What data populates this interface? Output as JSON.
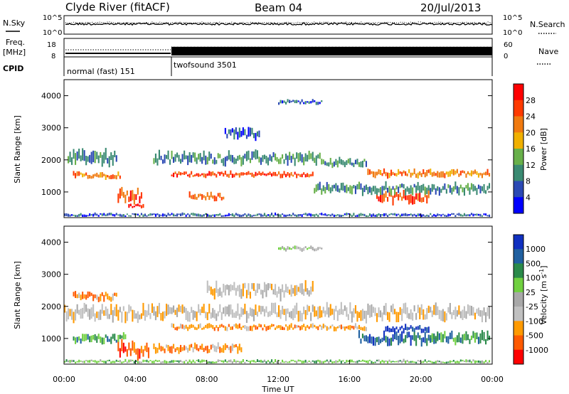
{
  "header": {
    "station": "Clyde River (fitACF)",
    "beam": "Beam 04",
    "date": "20/Jul/2013"
  },
  "noise_panel": {
    "left_label": "N.Sky",
    "left_ticks": [
      "10^5",
      "10^0"
    ],
    "right_ticks": [
      "10^5",
      "10^0"
    ],
    "right_label": "N.Search",
    "solid_level": 0.55,
    "dotted_level": 0.62
  },
  "freq_panel": {
    "left_label_1": "Freq.",
    "left_label_2": "[MHz]",
    "left_ticks": [
      "18",
      "8"
    ],
    "right_ticks": [
      "60",
      "0"
    ],
    "right_label": "Nave"
  },
  "cpid_panel": {
    "label": "CPID",
    "modes": [
      {
        "name": "normal (fast) 151",
        "start_hour": 0,
        "end_hour": 6
      },
      {
        "name": "twofsound 3501",
        "start_hour": 6,
        "end_hour": 24
      }
    ]
  },
  "colors": {
    "power": [
      "#0000ff",
      "#2b49b4",
      "#3a8a72",
      "#68b04a",
      "#f0b000",
      "#f07a10",
      "#ff3a00",
      "#ff0000"
    ],
    "velocity": [
      "#ff0000",
      "#ff5a00",
      "#ff9a00",
      "#c0c0c0",
      "#a8a8a8",
      "#70d040",
      "#2a8a4a",
      "#2060a0",
      "#1030c0"
    ]
  },
  "chart_data": [
    {
      "type": "heatmap",
      "title": "",
      "ylabel": "Slant Range [km]",
      "y_ticks": [
        1000,
        2000,
        3000,
        4000
      ],
      "ylim": [
        200,
        4500
      ],
      "xlim": [
        0,
        24
      ],
      "x_ticks": [
        "00:00",
        "04:00",
        "08:00",
        "12:00",
        "16:00",
        "20:00",
        "00:00"
      ],
      "colorbar": {
        "label": "Power [dB]",
        "ticks": [
          "4",
          "8",
          "12",
          "16",
          "20",
          "24",
          "28"
        ]
      },
      "bands": [
        {
          "start_hour": 0.2,
          "end_hour": 3.0,
          "center_km": 2050,
          "width_km": 500,
          "level": 2
        },
        {
          "start_hour": 0.5,
          "end_hour": 3.2,
          "center_km": 1520,
          "width_km": 220,
          "level": 5
        },
        {
          "start_hour": 3.0,
          "end_hour": 4.4,
          "center_km": 900,
          "width_km": 500,
          "level": 6
        },
        {
          "start_hour": 3.6,
          "end_hour": 4.5,
          "center_km": 550,
          "width_km": 160,
          "level": 7
        },
        {
          "start_hour": 6.0,
          "end_hour": 14.0,
          "center_km": 1550,
          "width_km": 180,
          "level": 6
        },
        {
          "start_hour": 7.0,
          "end_hour": 9.0,
          "center_km": 850,
          "width_km": 250,
          "level": 5
        },
        {
          "start_hour": 5.0,
          "end_hour": 14.5,
          "center_km": 2050,
          "width_km": 400,
          "level": 2
        },
        {
          "start_hour": 14.5,
          "end_hour": 17.0,
          "center_km": 1900,
          "width_km": 300,
          "level": 2
        },
        {
          "start_hour": 17.5,
          "end_hour": 20.5,
          "center_km": 850,
          "width_km": 400,
          "level": 6
        },
        {
          "start_hour": 17.0,
          "end_hour": 23.9,
          "center_km": 1580,
          "width_km": 250,
          "level": 5
        },
        {
          "start_hour": 14.0,
          "end_hour": 23.9,
          "center_km": 1100,
          "width_km": 350,
          "level": 2
        },
        {
          "start_hour": 12.0,
          "end_hour": 14.5,
          "center_km": 3800,
          "width_km": 150,
          "level": 1
        },
        {
          "start_hour": 9.0,
          "end_hour": 11.0,
          "center_km": 2800,
          "width_km": 400,
          "level": 1
        },
        {
          "start_hour": 0.0,
          "end_hour": 23.9,
          "center_km": 280,
          "width_km": 120,
          "level": 1
        }
      ]
    },
    {
      "type": "heatmap",
      "title": "",
      "ylabel": "Slant Range [km]",
      "y_ticks": [
        1000,
        2000,
        3000,
        4000
      ],
      "ylim": [
        200,
        4500
      ],
      "xlim": [
        0,
        24
      ],
      "x_ticks": [
        "00:00",
        "04:00",
        "08:00",
        "12:00",
        "16:00",
        "20:00",
        "00:00"
      ],
      "xlabel": "Time UT",
      "colorbar": {
        "label": "Velocity [m s^-1]",
        "ticks": [
          "1000",
          "500",
          "100",
          "25",
          "-25",
          "-100",
          "-500",
          "-1000"
        ]
      },
      "bands": [
        {
          "start_hour": 0.0,
          "end_hour": 23.9,
          "center_km": 1800,
          "width_km": 500,
          "level": 3
        },
        {
          "start_hour": 0.5,
          "end_hour": 3.0,
          "center_km": 2300,
          "width_km": 300,
          "level": 2
        },
        {
          "start_hour": 3.0,
          "end_hour": 4.8,
          "center_km": 650,
          "width_km": 500,
          "level": 1
        },
        {
          "start_hour": 5.0,
          "end_hour": 10.0,
          "center_km": 700,
          "width_km": 300,
          "level": 2
        },
        {
          "start_hour": 6.0,
          "end_hour": 17.0,
          "center_km": 1350,
          "width_km": 200,
          "level": 2
        },
        {
          "start_hour": 16.5,
          "end_hour": 21.0,
          "center_km": 1000,
          "width_km": 450,
          "level": 7
        },
        {
          "start_hour": 18.0,
          "end_hour": 20.5,
          "center_km": 1300,
          "width_km": 250,
          "level": 8
        },
        {
          "start_hour": 20.5,
          "end_hour": 23.9,
          "center_km": 1000,
          "width_km": 400,
          "level": 6
        },
        {
          "start_hour": 0.5,
          "end_hour": 3.5,
          "center_km": 1000,
          "width_km": 300,
          "level": 6
        },
        {
          "start_hour": 8.0,
          "end_hour": 14.0,
          "center_km": 2500,
          "width_km": 500,
          "level": 3
        },
        {
          "start_hour": 12.0,
          "end_hour": 14.5,
          "center_km": 3800,
          "width_km": 150,
          "level": 4
        },
        {
          "start_hour": 0.0,
          "end_hour": 23.9,
          "center_km": 280,
          "width_km": 120,
          "level": 5
        }
      ]
    }
  ]
}
